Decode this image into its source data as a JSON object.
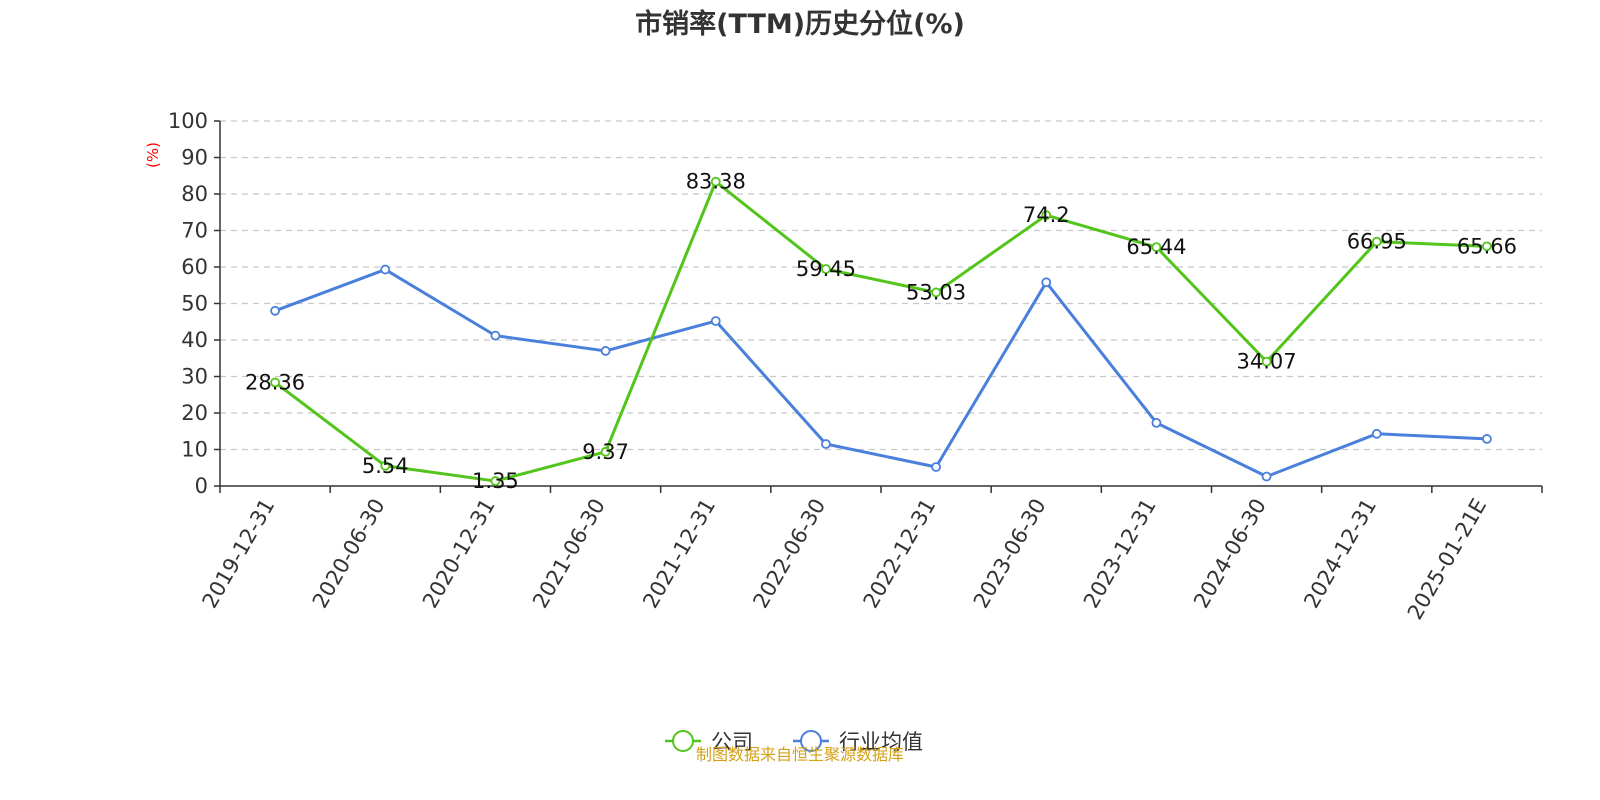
{
  "chart_data": {
    "type": "line",
    "title": "市销率(TTM)历史分位(%)",
    "ylabel": "(%)",
    "xlabel": "",
    "ylim": [
      0,
      100
    ],
    "yticks": [
      0,
      10,
      20,
      30,
      40,
      50,
      60,
      70,
      80,
      90,
      100
    ],
    "grid": "horizontal-dashed",
    "legend_position": "bottom-center",
    "categories": [
      "2019-12-31",
      "2020-06-30",
      "2020-12-31",
      "2021-06-30",
      "2021-12-31",
      "2022-06-30",
      "2022-12-31",
      "2023-06-30",
      "2023-12-31",
      "2024-06-30",
      "2024-12-31",
      "2025-01-21E"
    ],
    "series": [
      {
        "name": "公司",
        "color": "#52c41a",
        "show_labels": true,
        "values": [
          28.36,
          5.54,
          1.35,
          9.37,
          83.38,
          59.45,
          53.03,
          74.2,
          65.44,
          34.07,
          66.95,
          65.66
        ]
      },
      {
        "name": "行业均值",
        "color": "#4a7fdc",
        "show_labels": false,
        "values": [
          48.0,
          59.3,
          41.2,
          37.0,
          45.2,
          11.5,
          5.2,
          55.8,
          17.3,
          2.6,
          14.3,
          12.9
        ]
      }
    ],
    "source": "制图数据来自恒生聚源数据库",
    "source_color": "#d4a017",
    "ylabel_color": "#ff0000"
  }
}
